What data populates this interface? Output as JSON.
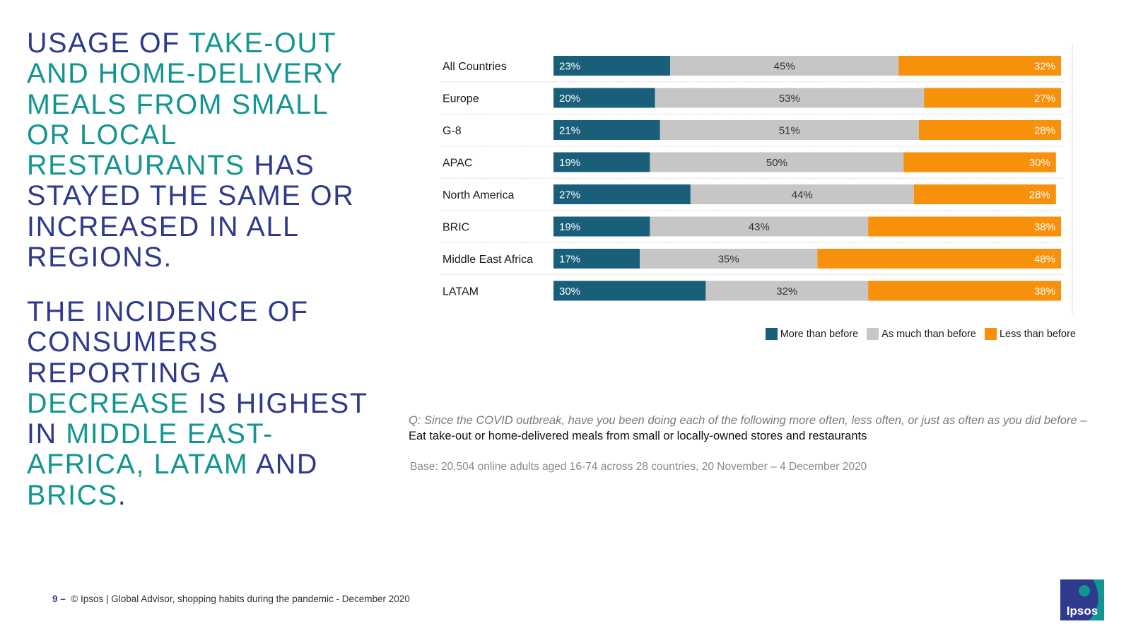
{
  "headline": {
    "first": [
      {
        "text": "USAGE OF ",
        "tone": "navy"
      },
      {
        "text": "TAKE-OUT AND HOME-DELIVERY MEALS FROM SMALL OR LOCAL RESTAURANTS",
        "tone": "teal"
      },
      {
        "text": " HAS STAYED THE SAME OR INCREASED IN ALL REGIONS.",
        "tone": "navy"
      }
    ],
    "second": [
      {
        "text": "THE INCIDENCE OF CONSUMERS REPORTING A ",
        "tone": "navy"
      },
      {
        "text": "DECREASE",
        "tone": "teal"
      },
      {
        "text": " IS HIGHEST IN ",
        "tone": "navy"
      },
      {
        "text": "MIDDLE EAST- AFRICA, LATAM",
        "tone": "teal"
      },
      {
        "text": " AND ",
        "tone": "navy"
      },
      {
        "text": "BRICS",
        "tone": "teal"
      },
      {
        "text": ".",
        "tone": "navy"
      }
    ]
  },
  "colors": {
    "navy": "#2e3a8c",
    "teal": "#13968f",
    "more": "#1a5f7a",
    "same": "#c6c6c6",
    "less": "#f7900a"
  },
  "chart_data": {
    "type": "bar",
    "orientation": "horizontal",
    "stacked": true,
    "categories": [
      "All Countries",
      "Europe",
      "G-8",
      "APAC",
      "North America",
      "BRIC",
      "Middle East Africa",
      "LATAM"
    ],
    "series": [
      {
        "name": "More than before",
        "color": "#1a5f7a",
        "values": [
          23,
          20,
          21,
          19,
          27,
          19,
          17,
          30
        ]
      },
      {
        "name": "As much than before",
        "color": "#c6c6c6",
        "values": [
          45,
          53,
          51,
          50,
          44,
          43,
          35,
          32
        ]
      },
      {
        "name": "Less than before",
        "color": "#f7900a",
        "values": [
          32,
          27,
          28,
          30,
          28,
          38,
          48,
          38
        ]
      }
    ],
    "value_suffix": "%",
    "legend_position": "bottom-right",
    "grid": false
  },
  "question": {
    "lead": "Q: Since the COVID outbreak, have you been doing each of the following more often, less often, or just as often as you did before – ",
    "item": "Eat take-out or home-delivered meals from small or locally-owned stores and restaurants"
  },
  "base": "Base: 20,504 online adults aged 16-74 across 28 countries,  20 November – 4 December 2020",
  "footer": {
    "page": "9 –",
    "source": "© Ipsos |  Global Advisor, shopping habits during the pandemic - December 2020"
  },
  "logo": {
    "text": "Ipsos",
    "icon": "ipsos-logo-icon"
  }
}
